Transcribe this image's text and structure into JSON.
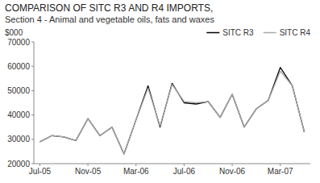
{
  "chart_data": {
    "type": "line",
    "title": "COMPARISON OF SITC R3 AND R4 IMPORTS,",
    "subtitle": "Section 4 - Animal and vegetable oils, fats and waxes",
    "ylabel": "$000",
    "categories": [
      "Jul-05",
      null,
      null,
      null,
      "Nov-05",
      null,
      null,
      null,
      "Mar-06",
      null,
      null,
      null,
      "Jul-06",
      null,
      null,
      null,
      "Nov-06",
      null,
      null,
      null,
      "Mar-07",
      null,
      null
    ],
    "series": [
      {
        "name": "SITC R3",
        "color": "#000000",
        "values": [
          29000,
          31500,
          31000,
          29500,
          38500,
          31500,
          35000,
          24000,
          38000,
          52000,
          35000,
          53000,
          45000,
          44500,
          45500,
          39000,
          48500,
          35000,
          42500,
          46000,
          59500,
          52000,
          33000
        ]
      },
      {
        "name": "SITC R4",
        "color": "#aaaaaa",
        "values": [
          29000,
          31500,
          31000,
          29500,
          38500,
          31500,
          35000,
          24000,
          38000,
          51000,
          35500,
          52500,
          45500,
          45000,
          45500,
          39000,
          48500,
          35000,
          42500,
          46000,
          58000,
          52000,
          33000
        ]
      }
    ],
    "ylim": [
      20000,
      70000
    ],
    "yticks": [
      20000,
      30000,
      40000,
      50000,
      60000,
      70000
    ],
    "grid": false,
    "legend": "upper right"
  }
}
